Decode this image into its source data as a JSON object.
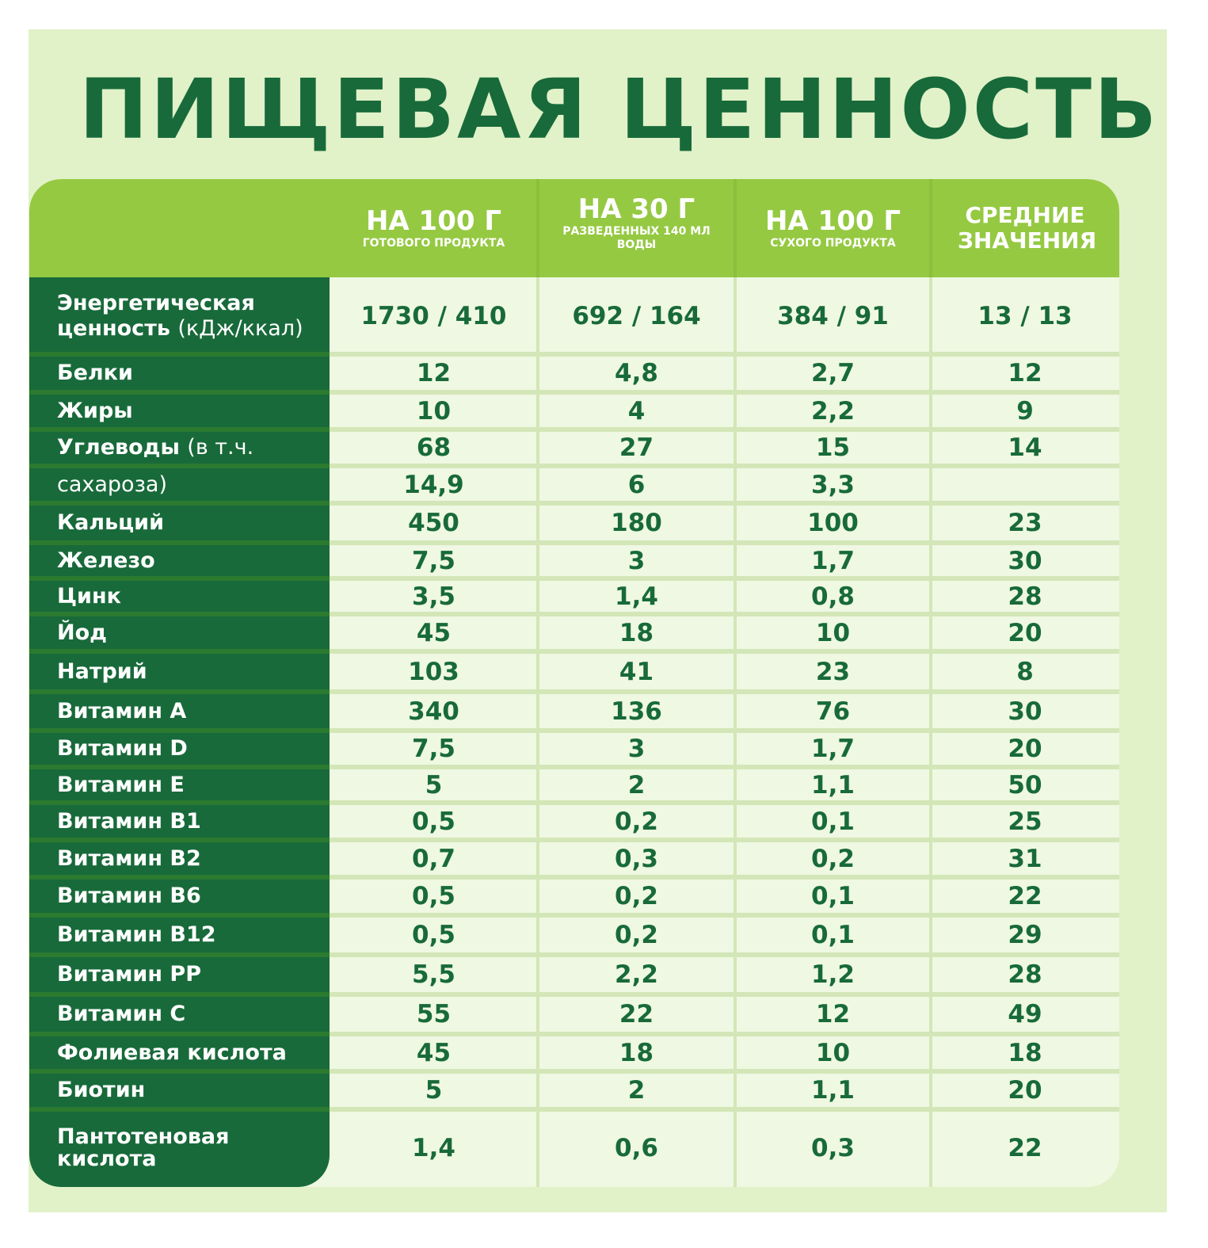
{
  "title": "ПИЩЕВАЯ ЦЕННОСТЬ",
  "colors": {
    "panel_bg": "#e1f1c8",
    "header_bg": "#95c942",
    "label_col_bg": "#186a3a",
    "cell_bg": "#eff8e2",
    "text_green": "#186a3a"
  },
  "columns": [
    {
      "main": "НА 100 Г",
      "sub": "ГОТОВОГО ПРОДУКТА"
    },
    {
      "main": "НА 30 Г",
      "sub": "РАЗВЕДЕННЫХ 140 МЛ ВОДЫ"
    },
    {
      "main": "НА 100 Г",
      "sub": "СУХОГО ПРОДУКТА"
    },
    {
      "main": "СРЕДНИЕ ЗНАЧЕНИЯ",
      "sub": ""
    }
  ],
  "rows": [
    {
      "label": "Энергетическая ценность",
      "label_extra": "(кДж/ккал)",
      "values": [
        "1730 / 410",
        "692 / 164",
        "384 / 91",
        "13 / 13"
      ]
    },
    {
      "label": "Белки",
      "label_extra": "",
      "values": [
        "12",
        "4,8",
        "2,7",
        "12"
      ]
    },
    {
      "label": "Жиры",
      "label_extra": "",
      "values": [
        "10",
        "4",
        "2,2",
        "9"
      ]
    },
    {
      "label": "Углеводы",
      "label_extra": "(в т.ч.",
      "values": [
        "68",
        "27",
        "15",
        "14"
      ]
    },
    {
      "label": "",
      "label_extra": "сахароза)",
      "values": [
        "14,9",
        "6",
        "3,3",
        ""
      ]
    },
    {
      "label": "Кальций",
      "label_extra": "",
      "values": [
        "450",
        "180",
        "100",
        "23"
      ]
    },
    {
      "label": "Железо",
      "label_extra": "",
      "values": [
        "7,5",
        "3",
        "1,7",
        "30"
      ]
    },
    {
      "label": "Цинк",
      "label_extra": "",
      "values": [
        "3,5",
        "1,4",
        "0,8",
        "28"
      ]
    },
    {
      "label": "Йод",
      "label_extra": "",
      "values": [
        "45",
        "18",
        "10",
        "20"
      ]
    },
    {
      "label": "Натрий",
      "label_extra": "",
      "values": [
        "103",
        "41",
        "23",
        "8"
      ]
    },
    {
      "label": "Витамин A",
      "label_extra": "",
      "values": [
        "340",
        "136",
        "76",
        "30"
      ]
    },
    {
      "label": "Витамин D",
      "label_extra": "",
      "values": [
        "7,5",
        "3",
        "1,7",
        "20"
      ]
    },
    {
      "label": "Витамин E",
      "label_extra": "",
      "values": [
        "5",
        "2",
        "1,1",
        "50"
      ]
    },
    {
      "label": "Витамин B1",
      "label_extra": "",
      "values": [
        "0,5",
        "0,2",
        "0,1",
        "25"
      ]
    },
    {
      "label": "Витамин B2",
      "label_extra": "",
      "values": [
        "0,7",
        "0,3",
        "0,2",
        "31"
      ]
    },
    {
      "label": "Витамин B6",
      "label_extra": "",
      "values": [
        "0,5",
        "0,2",
        "0,1",
        "22"
      ]
    },
    {
      "label": "Витамин B12",
      "label_extra": "",
      "values": [
        "0,5",
        "0,2",
        "0,1",
        "29"
      ]
    },
    {
      "label": "Витамин PP",
      "label_extra": "",
      "values": [
        "5,5",
        "2,2",
        "1,2",
        "28"
      ]
    },
    {
      "label": "Витамин C",
      "label_extra": "",
      "values": [
        "55",
        "22",
        "12",
        "49"
      ]
    },
    {
      "label": "Фолиевая кислота",
      "label_extra": "",
      "values": [
        "45",
        "18",
        "10",
        "18"
      ]
    },
    {
      "label": "Биотин",
      "label_extra": "",
      "values": [
        "5",
        "2",
        "1,1",
        "20"
      ]
    },
    {
      "label": "Пантотеновая кислота",
      "label_extra": "",
      "values": [
        "1,4",
        "0,6",
        "0,3",
        "22"
      ]
    }
  ]
}
